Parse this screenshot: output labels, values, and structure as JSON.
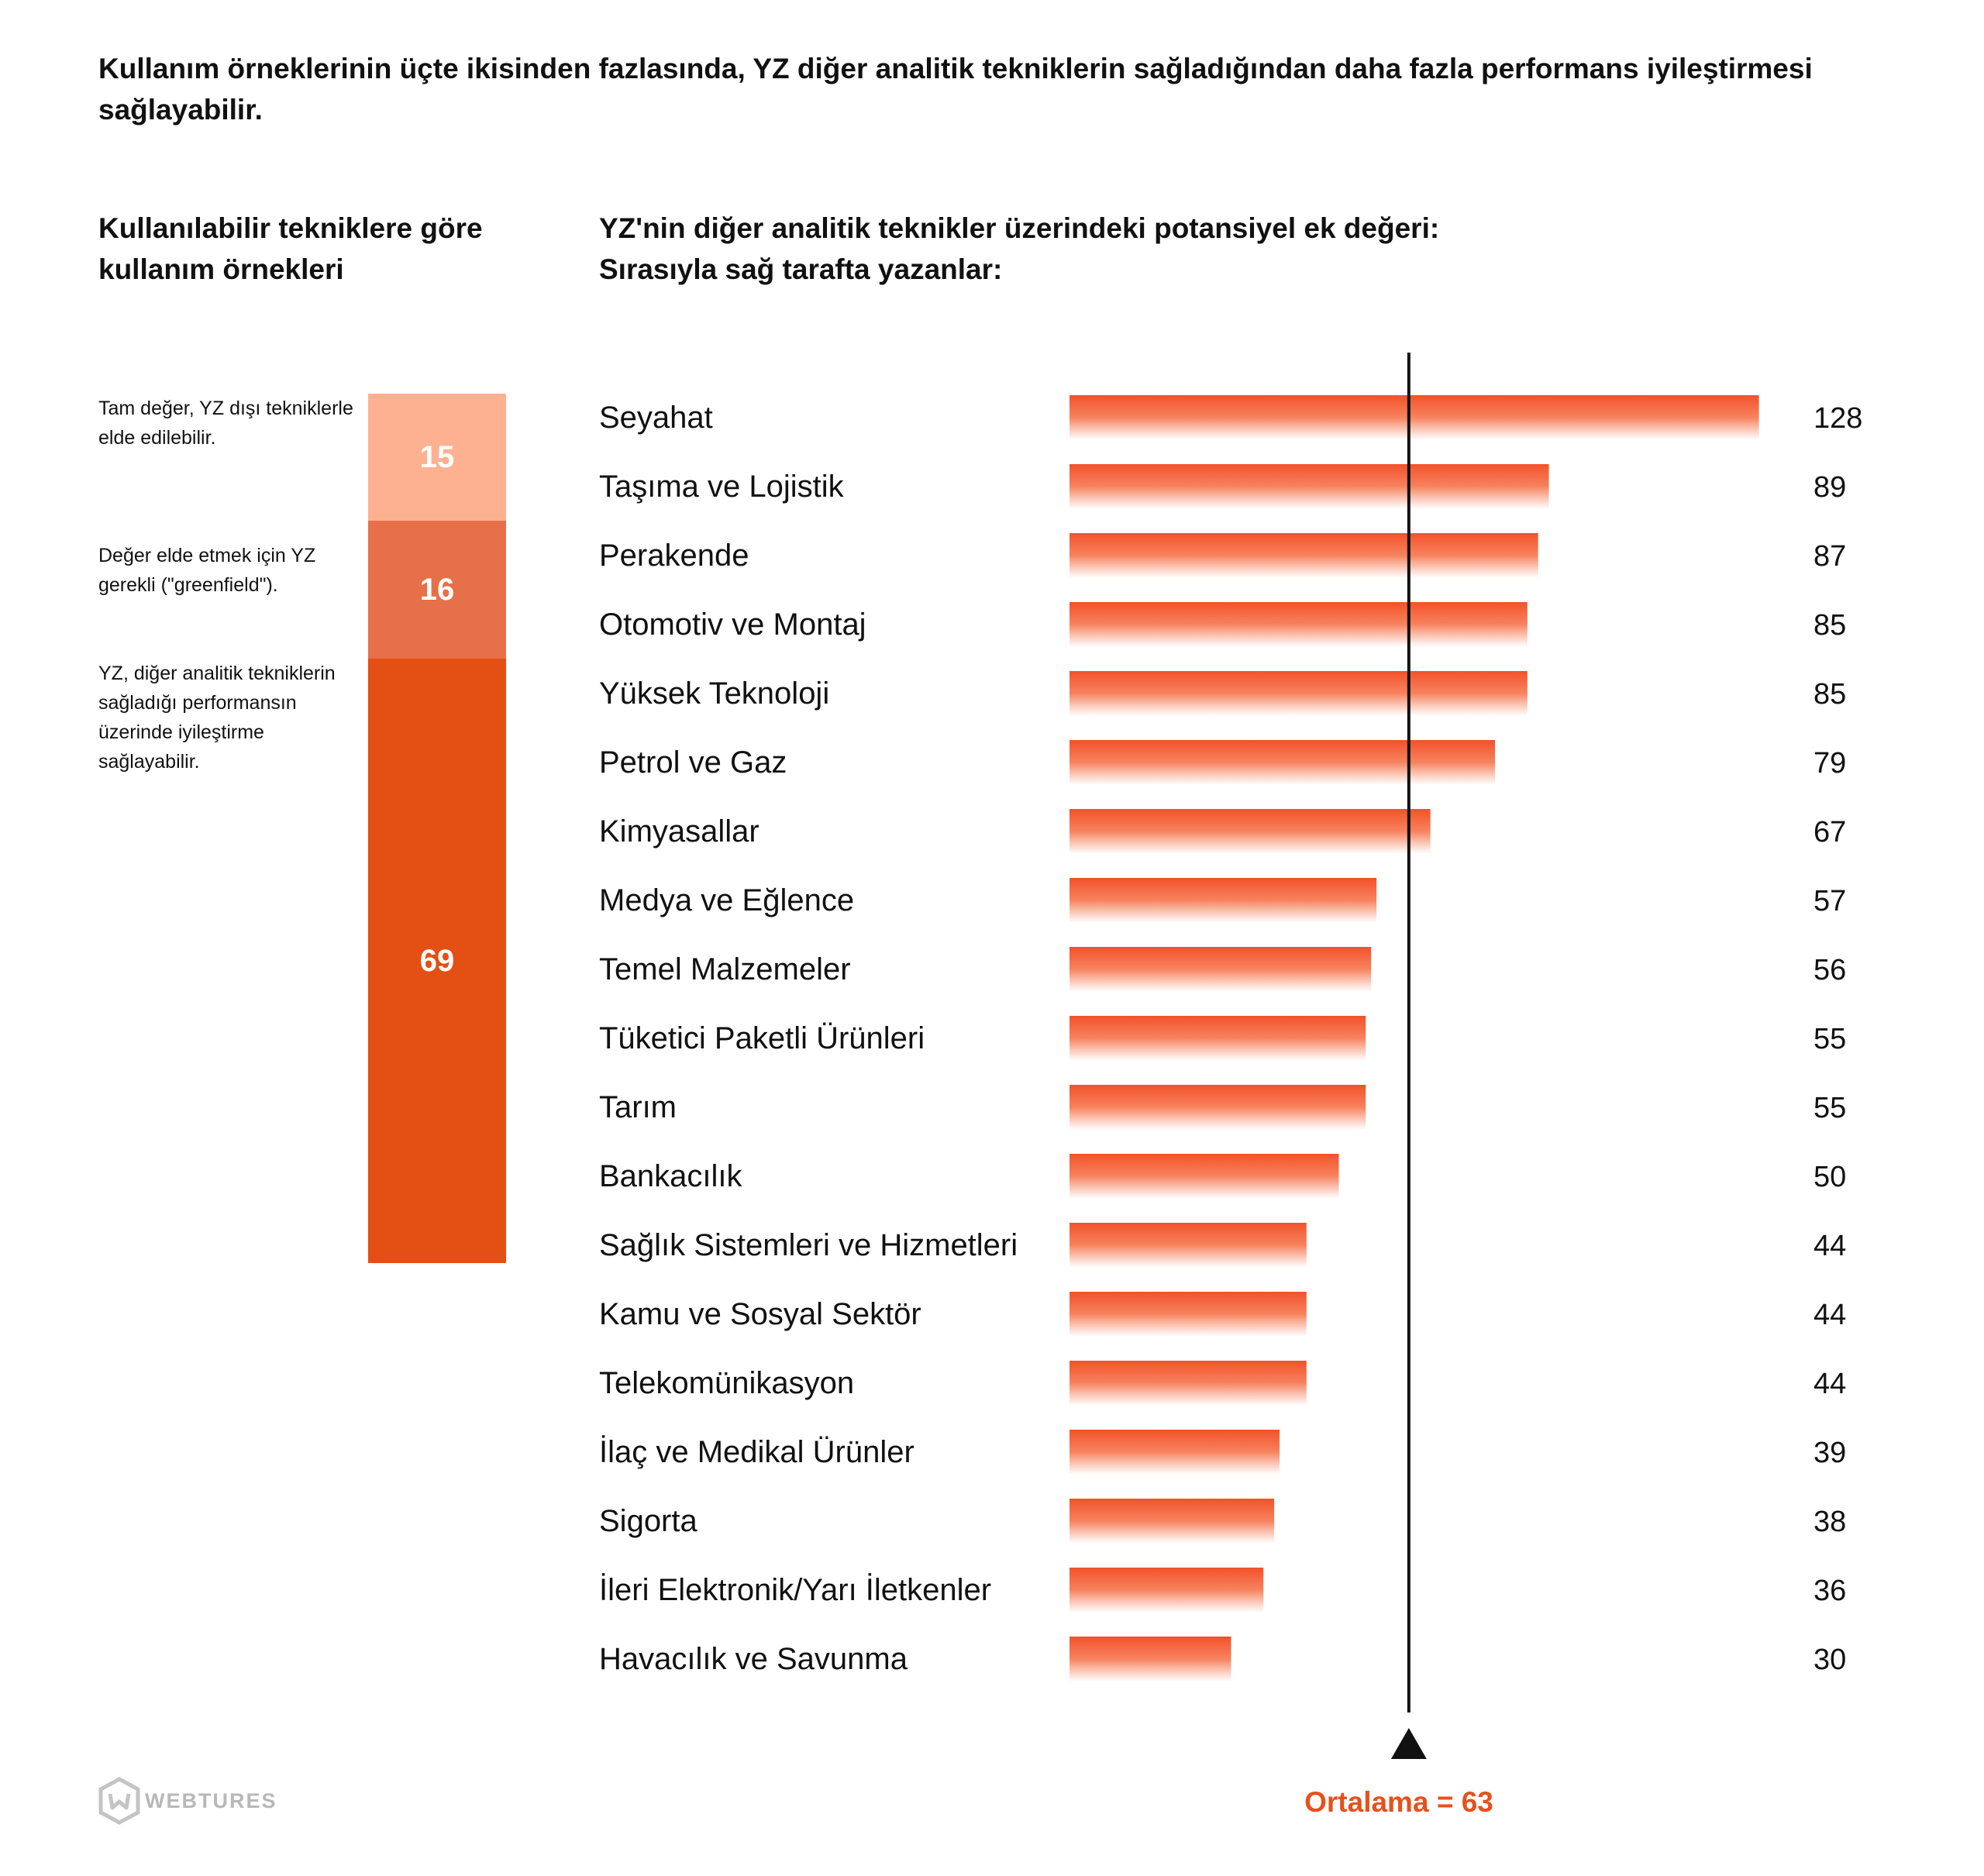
{
  "headline": "Kullanım örneklerinin üçte ikisinden fazlasında, YZ diğer analitik tekniklerin sağladığından daha fazla performans iyileştirmesi sağlayabilir.",
  "left_panel": {
    "title": "Kullanılabilir tekniklere göre kullanım örnekleri",
    "segments": [
      {
        "label": "Tam değer, YZ dışı tekniklerle elde edilebilir.",
        "value": "15",
        "color": "#fdb191"
      },
      {
        "label": "Değer elde etmek için YZ gerekli (\"greenfield\").",
        "value": "16",
        "color": "#e6704a"
      },
      {
        "label": "YZ, diğer analitik tekniklerin sağladığı performansın üzerinde iyileştirme sağlayabilir.",
        "value": "69",
        "color": "#e44f14"
      }
    ]
  },
  "right_panel": {
    "title_line1": "YZ'nin diğer analitik teknikler üzerindeki potansiyel ek değeri:",
    "title_line2": "Sırasıyla sağ tarafta yazanlar:"
  },
  "chart_data": {
    "type": "bar",
    "orientation": "horizontal",
    "categories": [
      "Seyahat",
      "Taşıma ve Lojistik",
      "Perakende",
      "Otomotiv ve Montaj",
      "Yüksek Teknoloji",
      "Petrol ve Gaz",
      "Kimyasallar",
      "Medya ve Eğlence",
      "Temel Malzemeler",
      "Tüketici Paketli Ürünleri",
      "Tarım",
      "Bankacılık",
      "Sağlık Sistemleri ve Hizmetleri",
      "Kamu ve Sosyal Sektör",
      "Telekomünikasyon",
      "İlaç ve Medikal Ürünler",
      "Sigorta",
      "İleri Elektronik/Yarı İletkenler",
      "Havacılık ve Savunma"
    ],
    "values": [
      128,
      89,
      87,
      85,
      85,
      79,
      67,
      57,
      56,
      55,
      55,
      50,
      44,
      44,
      44,
      39,
      38,
      36,
      30
    ],
    "average": 63,
    "average_label": "Ortalama = 63",
    "bar_color": "#f2522a",
    "grid": false
  },
  "logo": {
    "text": "WEBTURES"
  }
}
